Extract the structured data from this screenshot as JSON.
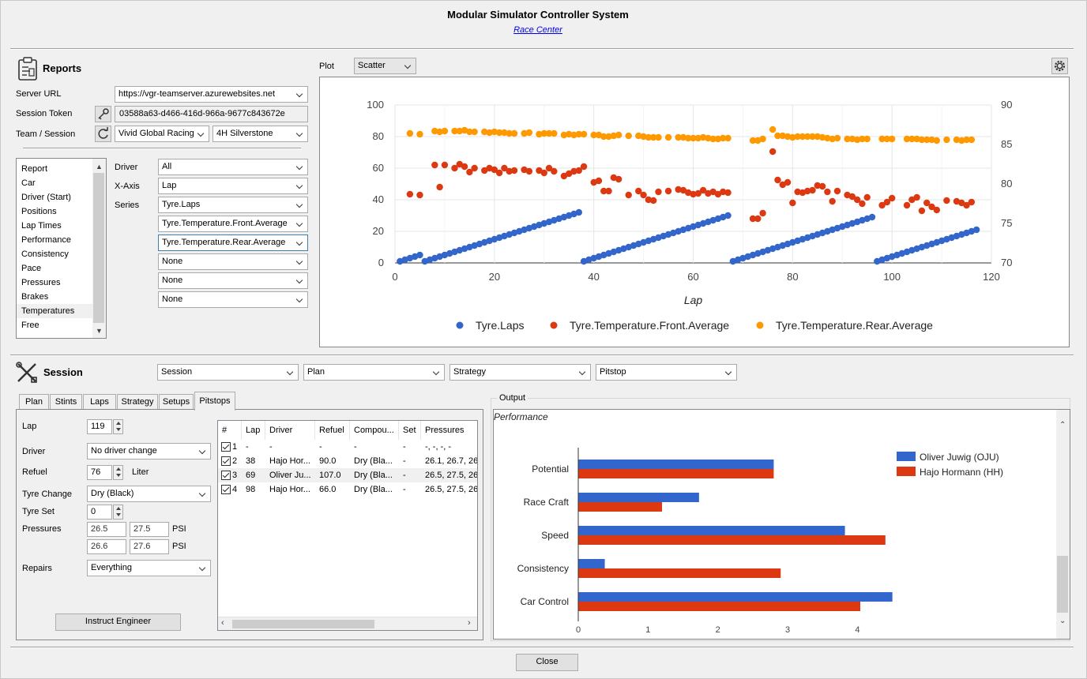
{
  "window": {
    "title": "Modular Simulator Controller System",
    "subtitle": "Race Center"
  },
  "reports": {
    "header": "Reports",
    "server_url_label": "Server URL",
    "server_url": "https://vgr-teamserver.azurewebsites.net",
    "session_token_label": "Session Token",
    "session_token": "03588a63-d466-416d-966a-9677c843672e",
    "team_session_label": "Team / Session",
    "team": "Vivid Global Racing",
    "session": "4H Silverstone",
    "report_list": [
      "Report",
      "Car",
      "Driver (Start)",
      "Positions",
      "Lap Times",
      "Performance",
      "Consistency",
      "Pace",
      "Pressures",
      "Brakes",
      "Temperatures",
      "Free"
    ],
    "selected_report": "Temperatures",
    "driver_label": "Driver",
    "driver": "All",
    "xaxis_label": "X-Axis",
    "xaxis": "Lap",
    "series_label": "Series",
    "series": [
      "Tyre.Laps",
      "Tyre.Temperature.Front.Average",
      "Tyre.Temperature.Rear.Average",
      "None",
      "None",
      "None"
    ]
  },
  "plot": {
    "label": "Plot",
    "type": "Scatter",
    "settings_icon": "gear-icon"
  },
  "chart_data": [
    {
      "type": "scatter",
      "xlabel": "Lap",
      "xlim": [
        0,
        120
      ],
      "ylim_left": [
        0,
        100
      ],
      "ylim_right": [
        70,
        90
      ],
      "x_ticks": [
        "0",
        "20",
        "40",
        "60",
        "80",
        "100",
        "120"
      ],
      "y_left_ticks": [
        "0",
        "20",
        "40",
        "60",
        "80",
        "100"
      ],
      "y_right_ticks": [
        "70",
        "75",
        "80",
        "85",
        "90"
      ],
      "legend_position": "bottom",
      "series": [
        {
          "name": "Tyre.Laps",
          "axis": "left",
          "color": "#3366cc",
          "stints": [
            [
              1,
              5,
              1
            ],
            [
              6,
              37,
              1
            ],
            [
              38,
              67,
              1
            ],
            [
              68,
              96,
              1
            ],
            [
              97,
              117,
              1
            ]
          ]
        },
        {
          "name": "Tyre.Temperature.Front.Average",
          "axis": "right",
          "color": "#dc3912",
          "points": [
            [
              3,
              78.7
            ],
            [
              5,
              78.6
            ],
            [
              8,
              82.4
            ],
            [
              9,
              79.6
            ],
            [
              10,
              82.4
            ],
            [
              12,
              82.0
            ],
            [
              13,
              82.5
            ],
            [
              14,
              82.2
            ],
            [
              15,
              81.5
            ],
            [
              16,
              82.0
            ],
            [
              18,
              81.7
            ],
            [
              19,
              82.0
            ],
            [
              20,
              81.8
            ],
            [
              21,
              81.4
            ],
            [
              22,
              82.0
            ],
            [
              23,
              81.6
            ],
            [
              24,
              81.7
            ],
            [
              26,
              81.8
            ],
            [
              27,
              81.6
            ],
            [
              29,
              81.7
            ],
            [
              30,
              81.4
            ],
            [
              31,
              82.0
            ],
            [
              32,
              81.6
            ],
            [
              34,
              81.0
            ],
            [
              35,
              81.3
            ],
            [
              36,
              81.6
            ],
            [
              37,
              81.7
            ],
            [
              38,
              82.2
            ],
            [
              40,
              80.2
            ],
            [
              41,
              80.4
            ],
            [
              42,
              79.1
            ],
            [
              43,
              79.1
            ],
            [
              44,
              80.8
            ],
            [
              45,
              80.6
            ],
            [
              47,
              78.6
            ],
            [
              49,
              79.1
            ],
            [
              50,
              78.6
            ],
            [
              51,
              78.0
            ],
            [
              52,
              77.9
            ],
            [
              53,
              79.0
            ],
            [
              55,
              79.1
            ],
            [
              57,
              79.3
            ],
            [
              58,
              79.2
            ],
            [
              59,
              78.9
            ],
            [
              60,
              78.7
            ],
            [
              61,
              78.8
            ],
            [
              62,
              79.2
            ],
            [
              63,
              78.8
            ],
            [
              64,
              79.0
            ],
            [
              65,
              78.7
            ],
            [
              66,
              79.0
            ],
            [
              67,
              78.9
            ],
            [
              72,
              75.6
            ],
            [
              73,
              75.6
            ],
            [
              74,
              76.3
            ],
            [
              76,
              84.1
            ],
            [
              77,
              80.5
            ],
            [
              78,
              79.9
            ],
            [
              79,
              80.2
            ],
            [
              80,
              77.6
            ],
            [
              81,
              79.0
            ],
            [
              82,
              78.9
            ],
            [
              83,
              79.1
            ],
            [
              84,
              79.2
            ],
            [
              85,
              79.8
            ],
            [
              86,
              79.7
            ],
            [
              87,
              79.0
            ],
            [
              88,
              77.8
            ],
            [
              89,
              79.1
            ],
            [
              91,
              78.6
            ],
            [
              92,
              78.4
            ],
            [
              93,
              78.0
            ],
            [
              94,
              77.5
            ],
            [
              95,
              78.3
            ],
            [
              98,
              77.3
            ],
            [
              99,
              77.7
            ],
            [
              100,
              78.2
            ],
            [
              103,
              77.3
            ],
            [
              104,
              78.0
            ],
            [
              105,
              78.3
            ],
            [
              106,
              76.6
            ],
            [
              107,
              77.6
            ],
            [
              108,
              77.1
            ],
            [
              109,
              76.7
            ],
            [
              111,
              77.9
            ],
            [
              113,
              77.8
            ],
            [
              114,
              77.6
            ],
            [
              115,
              77.3
            ],
            [
              116,
              77.7
            ]
          ]
        },
        {
          "name": "Tyre.Temperature.Rear.Average",
          "axis": "right",
          "color": "#ff9900",
          "points": [
            [
              3,
              86.4
            ],
            [
              5,
              86.3
            ],
            [
              8,
              86.7
            ],
            [
              9,
              86.6
            ],
            [
              10,
              86.7
            ],
            [
              12,
              86.7
            ],
            [
              13,
              86.7
            ],
            [
              14,
              86.8
            ],
            [
              15,
              86.6
            ],
            [
              16,
              86.6
            ],
            [
              18,
              86.6
            ],
            [
              19,
              86.5
            ],
            [
              20,
              86.6
            ],
            [
              21,
              86.5
            ],
            [
              22,
              86.5
            ],
            [
              23,
              86.4
            ],
            [
              24,
              86.4
            ],
            [
              26,
              86.4
            ],
            [
              27,
              86.5
            ],
            [
              29,
              86.3
            ],
            [
              30,
              86.4
            ],
            [
              31,
              86.4
            ],
            [
              32,
              86.4
            ],
            [
              34,
              86.2
            ],
            [
              35,
              86.3
            ],
            [
              36,
              86.2
            ],
            [
              37,
              86.3
            ],
            [
              38,
              86.3
            ],
            [
              40,
              86.2
            ],
            [
              41,
              86.2
            ],
            [
              42,
              86.0
            ],
            [
              43,
              86.0
            ],
            [
              44,
              86.1
            ],
            [
              45,
              86.2
            ],
            [
              47,
              86.1
            ],
            [
              49,
              86.1
            ],
            [
              50,
              86.0
            ],
            [
              51,
              85.9
            ],
            [
              52,
              85.9
            ],
            [
              53,
              85.9
            ],
            [
              55,
              85.9
            ],
            [
              57,
              85.9
            ],
            [
              58,
              85.9
            ],
            [
              59,
              85.8
            ],
            [
              60,
              85.8
            ],
            [
              61,
              85.8
            ],
            [
              62,
              85.9
            ],
            [
              63,
              85.8
            ],
            [
              64,
              85.7
            ],
            [
              65,
              85.7
            ],
            [
              66,
              85.8
            ],
            [
              67,
              85.8
            ],
            [
              72,
              85.5
            ],
            [
              73,
              85.5
            ],
            [
              74,
              85.7
            ],
            [
              76,
              86.9
            ],
            [
              77,
              86.1
            ],
            [
              78,
              86.1
            ],
            [
              79,
              86.0
            ],
            [
              80,
              85.9
            ],
            [
              81,
              86.0
            ],
            [
              82,
              86.0
            ],
            [
              83,
              86.0
            ],
            [
              84,
              86.0
            ],
            [
              85,
              86.0
            ],
            [
              86,
              85.9
            ],
            [
              87,
              85.8
            ],
            [
              88,
              85.7
            ],
            [
              89,
              85.8
            ],
            [
              91,
              85.7
            ],
            [
              92,
              85.7
            ],
            [
              93,
              85.6
            ],
            [
              94,
              85.7
            ],
            [
              95,
              85.7
            ],
            [
              98,
              85.7
            ],
            [
              99,
              85.7
            ],
            [
              100,
              85.7
            ],
            [
              103,
              85.7
            ],
            [
              104,
              85.7
            ],
            [
              105,
              85.7
            ],
            [
              106,
              85.6
            ],
            [
              107,
              85.6
            ],
            [
              108,
              85.6
            ],
            [
              109,
              85.5
            ],
            [
              111,
              85.6
            ],
            [
              113,
              85.6
            ],
            [
              114,
              85.5
            ],
            [
              115,
              85.6
            ],
            [
              116,
              85.6
            ]
          ]
        }
      ]
    },
    {
      "type": "bar",
      "title": "Performance",
      "categories": [
        "Potential",
        "Race Craft",
        "Speed",
        "Consistency",
        "Car Control"
      ],
      "xlim": [
        0,
        4.9
      ],
      "x_ticks": [
        "0",
        "1",
        "2",
        "3",
        "4"
      ],
      "legend_position": "top-right",
      "series": [
        {
          "name": "Oliver Juwig (OJU)",
          "color": "#3366cc",
          "values": [
            2.8,
            1.73,
            3.82,
            0.38,
            4.5
          ]
        },
        {
          "name": "Hajo Hormann (HH)",
          "color": "#dc3912",
          "values": [
            2.8,
            1.2,
            4.4,
            2.9,
            4.04
          ]
        }
      ]
    }
  ],
  "session": {
    "header": "Session",
    "menus": [
      "Session",
      "Plan",
      "Strategy",
      "Pitstop"
    ],
    "tabs": [
      "Plan",
      "Stints",
      "Laps",
      "Strategy",
      "Setups",
      "Pitstops"
    ],
    "active_tab": "Pitstops",
    "form": {
      "lap_label": "Lap",
      "lap": "119",
      "driver_label": "Driver",
      "driver": "No driver change",
      "refuel_label": "Refuel",
      "refuel": "76",
      "refuel_unit": "Liter",
      "tyre_change_label": "Tyre Change",
      "tyre_change": "Dry (Black)",
      "tyre_set_label": "Tyre Set",
      "tyre_set": "0",
      "pressures_label": "Pressures",
      "pressures": [
        "26.5",
        "27.5",
        "26.6",
        "27.6"
      ],
      "psi": "PSI",
      "repairs_label": "Repairs",
      "repairs": "Everything",
      "instruct_button": "Instruct Engineer"
    },
    "table": {
      "columns": [
        "#",
        "Lap",
        "Driver",
        "Refuel",
        "Compou...",
        "Set",
        "Pressures"
      ],
      "rows": [
        [
          "1",
          "-",
          "-",
          "-",
          "-",
          "-",
          "-, -, -, -"
        ],
        [
          "2",
          "38",
          "Hajo Hor...",
          "90.0",
          "Dry (Bla...",
          "-",
          "26.1, 26.7, 26"
        ],
        [
          "3",
          "69",
          "Oliver Ju...",
          "107.0",
          "Dry (Bla...",
          "-",
          "26.5, 27.5, 26"
        ],
        [
          "4",
          "98",
          "Hajo Hor...",
          "66.0",
          "Dry (Bla...",
          "-",
          "26.5, 27.5, 26"
        ]
      ]
    }
  },
  "output": {
    "label": "Output"
  },
  "footer": {
    "close": "Close"
  }
}
